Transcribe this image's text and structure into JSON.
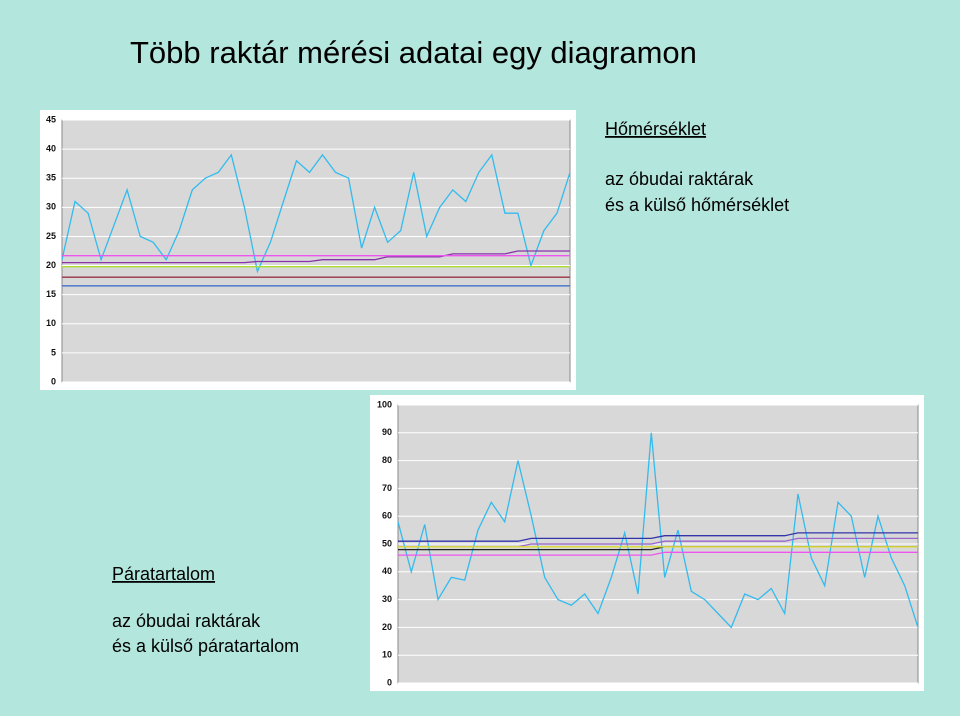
{
  "title": "Több raktár mérési adatai egy diagramon",
  "chart_data": [
    {
      "type": "line",
      "title": "Hőmérséklet",
      "subtitle": [
        "az óbudai raktárak",
        "és a külső hőmérséklet"
      ],
      "ylim": [
        0,
        45
      ],
      "yticks": [
        0,
        5,
        10,
        15,
        20,
        25,
        30,
        35,
        40,
        45
      ],
      "grid": true,
      "series": [
        {
          "color": "#33bbee",
          "values": [
            21,
            31,
            29,
            21,
            27,
            33,
            25,
            24,
            21,
            26,
            33,
            35,
            36,
            39,
            30,
            19,
            24,
            31,
            38,
            36,
            39,
            36,
            35,
            23,
            30,
            24,
            26,
            36,
            25,
            30,
            33,
            31,
            36,
            39,
            29,
            29,
            20,
            26,
            29,
            36
          ]
        },
        {
          "color": "#8833aa",
          "values": [
            20.5,
            20.5,
            20.5,
            20.5,
            20.5,
            20.5,
            20.5,
            20.5,
            20.5,
            20.5,
            20.5,
            20.5,
            20.5,
            20.5,
            20.5,
            20.7,
            20.7,
            20.7,
            20.7,
            20.7,
            21,
            21,
            21,
            21,
            21,
            21.5,
            21.5,
            21.5,
            21.5,
            21.5,
            22,
            22,
            22,
            22,
            22,
            22.5,
            22.5,
            22.5,
            22.5,
            22.5
          ]
        },
        {
          "color": "#ee55ee",
          "values": [
            21.7,
            21.7,
            21.7,
            21.7,
            21.7,
            21.7,
            21.7,
            21.7,
            21.7,
            21.7,
            21.7,
            21.7,
            21.7,
            21.7,
            21.7,
            21.7,
            21.7,
            21.7,
            21.7,
            21.7,
            21.7,
            21.7,
            21.7,
            21.7,
            21.7,
            21.7,
            21.7,
            21.7,
            21.7,
            21.7,
            21.7,
            21.7,
            21.7,
            21.7,
            21.7,
            21.7,
            21.7,
            21.7,
            21.7,
            21.7
          ]
        },
        {
          "color": "#aadd33",
          "values": [
            19.8,
            19.8,
            19.8,
            19.8,
            19.8,
            19.8,
            19.8,
            19.8,
            19.8,
            19.8,
            19.8,
            19.8,
            19.8,
            19.8,
            19.8,
            19.8,
            19.8,
            19.8,
            19.8,
            19.8,
            19.8,
            19.8,
            19.8,
            19.8,
            19.8,
            19.8,
            19.8,
            19.8,
            19.8,
            19.8,
            19.8,
            19.8,
            19.8,
            19.8,
            19.8,
            19.8,
            19.8,
            19.8,
            19.8,
            19.8
          ]
        },
        {
          "color": "#993344",
          "values": [
            18,
            18,
            18,
            18,
            18,
            18,
            18,
            18,
            18,
            18,
            18,
            18,
            18,
            18,
            18,
            18,
            18,
            18,
            18,
            18,
            18,
            18,
            18,
            18,
            18,
            18,
            18,
            18,
            18,
            18,
            18,
            18,
            18,
            18,
            18,
            18,
            18,
            18,
            18,
            18
          ]
        },
        {
          "color": "#3366cc",
          "values": [
            16.5,
            16.5,
            16.5,
            16.5,
            16.5,
            16.5,
            16.5,
            16.5,
            16.5,
            16.5,
            16.5,
            16.5,
            16.5,
            16.5,
            16.5,
            16.5,
            16.5,
            16.5,
            16.5,
            16.5,
            16.5,
            16.5,
            16.5,
            16.5,
            16.5,
            16.5,
            16.5,
            16.5,
            16.5,
            16.5,
            16.5,
            16.5,
            16.5,
            16.5,
            16.5,
            16.5,
            16.5,
            16.5,
            16.5,
            16.5
          ]
        }
      ]
    },
    {
      "type": "line",
      "title": "Páratartalom",
      "subtitle": [
        "az óbudai raktárak",
        "és a külső páratartalom"
      ],
      "ylim": [
        0,
        100
      ],
      "yticks": [
        0,
        10,
        20,
        30,
        40,
        50,
        60,
        70,
        80,
        90,
        100
      ],
      "grid": true,
      "series": [
        {
          "color": "#33bbee",
          "values": [
            58,
            40,
            57,
            30,
            38,
            37,
            55,
            65,
            58,
            80,
            60,
            38,
            30,
            28,
            32,
            25,
            38,
            54,
            32,
            90,
            38,
            55,
            33,
            30,
            25,
            20,
            32,
            30,
            34,
            25,
            68,
            45,
            35,
            65,
            60,
            38,
            60,
            45,
            35,
            20
          ]
        },
        {
          "color": "#3333aa",
          "values": [
            51,
            51,
            51,
            51,
            51,
            51,
            51,
            51,
            51,
            51,
            52,
            52,
            52,
            52,
            52,
            52,
            52,
            52,
            52,
            52,
            53,
            53,
            53,
            53,
            53,
            53,
            53,
            53,
            53,
            53,
            54,
            54,
            54,
            54,
            54,
            54,
            54,
            54,
            54,
            54
          ]
        },
        {
          "color": "#9966cc",
          "values": [
            49,
            49,
            49,
            49,
            49,
            49,
            49,
            49,
            49,
            49,
            50,
            50,
            50,
            50,
            50,
            50,
            50,
            50,
            50,
            50,
            51,
            51,
            51,
            51,
            51,
            51,
            51,
            51,
            51,
            51,
            52,
            52,
            52,
            52,
            52,
            52,
            52,
            52,
            52,
            52
          ]
        },
        {
          "color": "#222222",
          "values": [
            48,
            48,
            48,
            48,
            48,
            48,
            48,
            48,
            48,
            48,
            48,
            48,
            48,
            48,
            48,
            48,
            48,
            48,
            48,
            48,
            49,
            49,
            49,
            49,
            49,
            49,
            49,
            49,
            49,
            49,
            49,
            49,
            49,
            49,
            49,
            49,
            49,
            49,
            49,
            49
          ]
        },
        {
          "color": "#ee55ee",
          "values": [
            46,
            46,
            46,
            46,
            46,
            46,
            46,
            46,
            46,
            46,
            46,
            46,
            46,
            46,
            46,
            46,
            46,
            46,
            46,
            46,
            47,
            47,
            47,
            47,
            47,
            47,
            47,
            47,
            47,
            47,
            47,
            47,
            47,
            47,
            47,
            47,
            47,
            47,
            47,
            47
          ]
        },
        {
          "color": "#dddd33",
          "values": [
            49,
            49,
            49,
            49,
            49,
            49,
            49,
            49,
            49,
            49,
            49,
            49,
            49,
            49,
            49,
            49,
            49,
            49,
            49,
            49,
            49,
            49,
            49,
            49,
            49,
            49,
            49,
            49,
            49,
            49,
            49,
            49,
            49,
            49,
            49,
            49,
            49,
            49,
            49,
            49
          ]
        }
      ]
    }
  ]
}
